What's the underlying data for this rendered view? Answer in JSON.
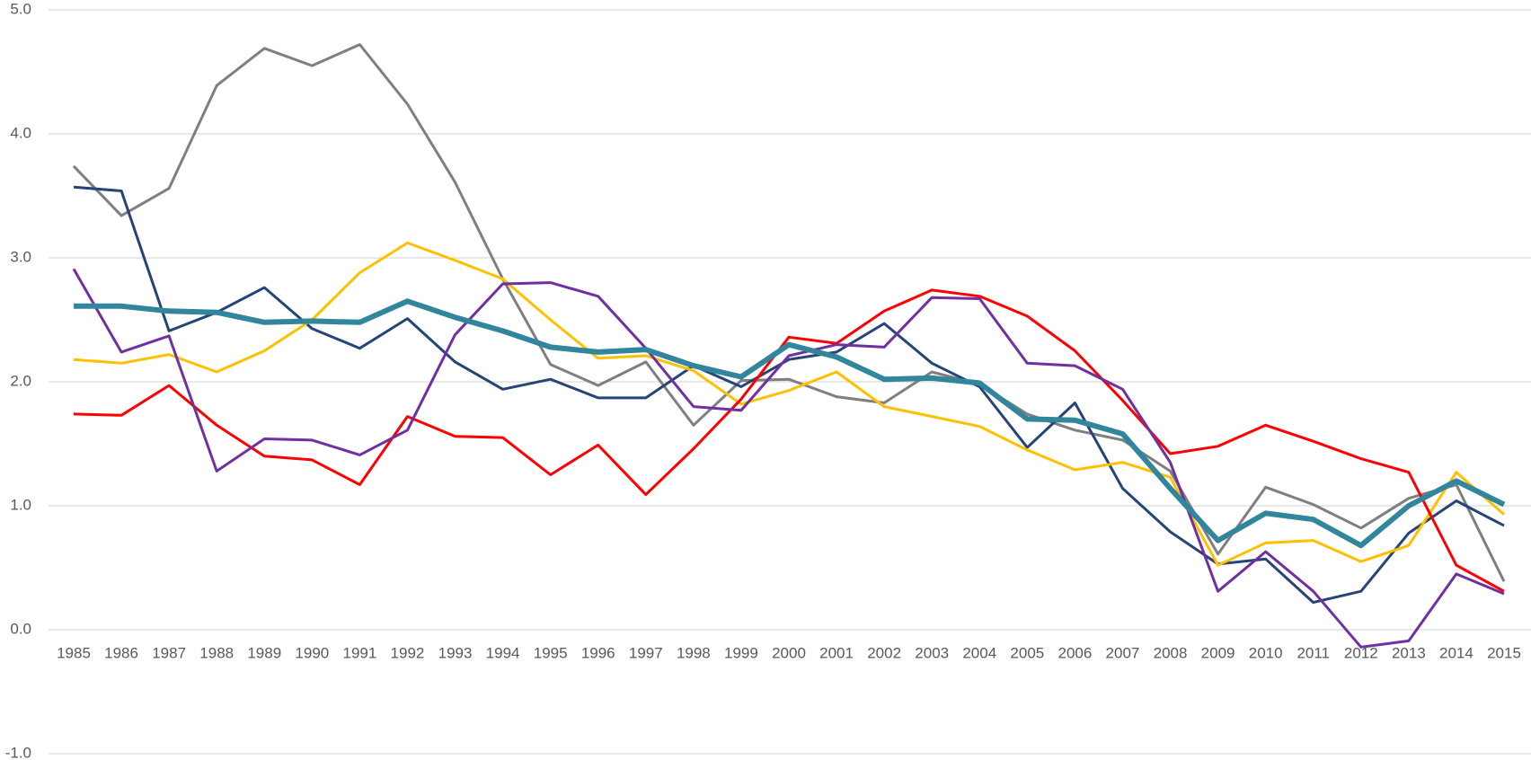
{
  "chart_data": {
    "type": "line",
    "categories": [
      "1985",
      "1986",
      "1987",
      "1988",
      "1989",
      "1990",
      "1991",
      "1992",
      "1993",
      "1994",
      "1995",
      "1996",
      "1997",
      "1998",
      "1999",
      "2000",
      "2001",
      "2002",
      "2003",
      "2004",
      "2005",
      "2006",
      "2007",
      "2008",
      "2009",
      "2010",
      "2011",
      "2012",
      "2013",
      "2014",
      "2015"
    ],
    "series": [
      {
        "color": "#7f7f7f",
        "width": 3,
        "values": [
          3.74,
          3.34,
          3.56,
          4.39,
          4.69,
          4.55,
          4.72,
          4.24,
          3.61,
          2.83,
          2.14,
          1.97,
          2.16,
          1.65,
          2.01,
          2.02,
          1.88,
          1.83,
          2.08,
          1.98,
          1.74,
          1.61,
          1.53,
          1.28,
          0.61,
          1.15,
          1.01,
          0.82,
          1.06,
          1.17,
          0.39
        ]
      },
      {
        "color": "#264478",
        "width": 3,
        "values": [
          3.57,
          3.54,
          2.41,
          2.56,
          2.76,
          2.43,
          2.27,
          2.51,
          2.16,
          1.94,
          2.02,
          1.87,
          1.87,
          2.13,
          1.96,
          2.18,
          2.24,
          2.47,
          2.15,
          1.96,
          1.47,
          1.83,
          1.14,
          0.79,
          0.53,
          0.57,
          0.22,
          0.31,
          0.78,
          1.04,
          0.84
        ]
      },
      {
        "color": "#ffc000",
        "width": 3,
        "values": [
          2.18,
          2.15,
          2.22,
          2.08,
          2.25,
          2.5,
          2.88,
          3.12,
          2.98,
          2.83,
          2.5,
          2.19,
          2.21,
          2.09,
          1.82,
          1.93,
          2.08,
          1.8,
          1.72,
          1.64,
          1.45,
          1.29,
          1.35,
          1.23,
          0.52,
          0.7,
          0.72,
          0.55,
          0.68,
          1.27,
          0.93
        ]
      },
      {
        "color": "#ff0000",
        "width": 3,
        "values": [
          1.74,
          1.73,
          1.97,
          1.65,
          1.4,
          1.37,
          1.17,
          1.72,
          1.56,
          1.55,
          1.25,
          1.49,
          1.09,
          1.46,
          1.86,
          2.36,
          2.31,
          2.57,
          2.74,
          2.69,
          2.53,
          2.25,
          1.85,
          1.42,
          1.48,
          1.65,
          1.52,
          1.38,
          1.27,
          0.52,
          0.31
        ]
      },
      {
        "color": "#7030a0",
        "width": 3,
        "values": [
          2.91,
          2.24,
          2.37,
          1.28,
          1.54,
          1.53,
          1.41,
          1.61,
          2.38,
          2.79,
          2.8,
          2.69,
          2.27,
          1.8,
          1.77,
          2.21,
          2.3,
          2.28,
          2.68,
          2.67,
          2.15,
          2.13,
          1.94,
          1.35,
          0.31,
          0.63,
          0.31,
          -0.14,
          -0.09,
          0.45,
          0.29
        ]
      },
      {
        "color": "#31859c",
        "width": 6,
        "values": [
          2.61,
          2.61,
          2.57,
          2.56,
          2.48,
          2.49,
          2.48,
          2.65,
          2.52,
          2.41,
          2.28,
          2.24,
          2.26,
          2.13,
          2.04,
          2.3,
          2.2,
          2.02,
          2.03,
          1.99,
          1.7,
          1.69,
          1.58,
          1.14,
          0.72,
          0.94,
          0.89,
          0.68,
          1.0,
          1.2,
          1.01
        ]
      }
    ],
    "ylim": [
      -1,
      5
    ],
    "yticks": [
      {
        "value": -1,
        "label": "-1.0"
      },
      {
        "value": 0,
        "label": "0.0"
      },
      {
        "value": 1,
        "label": "1.0"
      },
      {
        "value": 2,
        "label": "2.0"
      },
      {
        "value": 3,
        "label": "3.0"
      },
      {
        "value": 4,
        "label": "4.0"
      },
      {
        "value": 5,
        "label": "5.0"
      }
    ],
    "grid": true
  }
}
